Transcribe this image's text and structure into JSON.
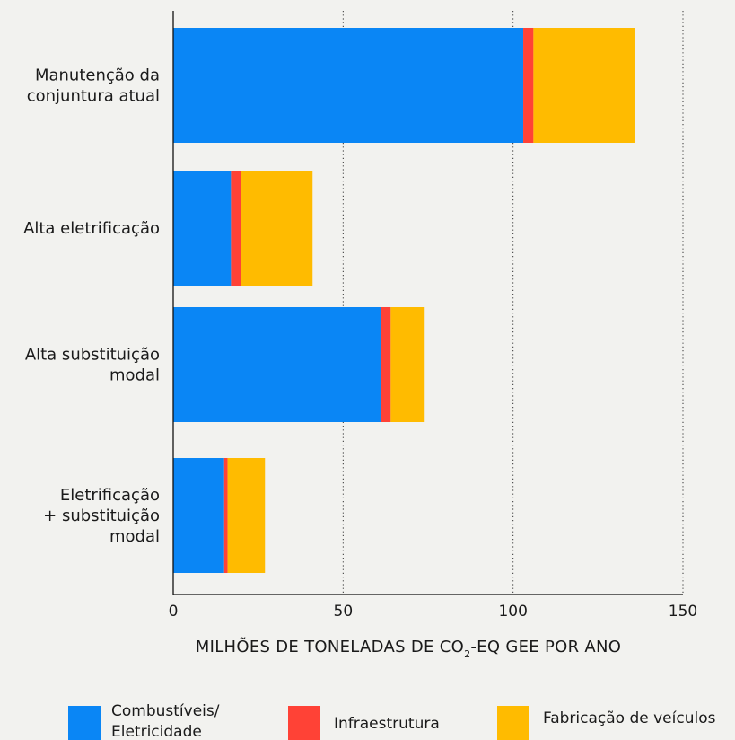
{
  "chart_data": {
    "type": "bar",
    "orientation": "horizontal",
    "stacked": true,
    "categories": [
      [
        "Manutenção da",
        "conjuntura atual"
      ],
      [
        "Alta eletrificação"
      ],
      [
        "Alta substituição",
        "modal"
      ],
      [
        "Eletrificação",
        "+  substituição",
        "modal"
      ]
    ],
    "series": [
      {
        "name": "Combustíveis/ Eletricidade",
        "name_lines": [
          "Combustíveis/",
          "Eletricidade"
        ],
        "color": "#0a86f5",
        "values": [
          103,
          17,
          61,
          15
        ]
      },
      {
        "name": "Infraestrutura",
        "name_lines": [
          "Infraestrutura"
        ],
        "color": "#ff4236",
        "values": [
          3,
          3,
          3,
          1
        ]
      },
      {
        "name": "Fabricação de veículos",
        "name_lines": [
          "Fabricação de veículos"
        ],
        "color": "#ffbb00",
        "values": [
          30,
          21,
          10,
          11
        ]
      }
    ],
    "xlabel": {
      "prefix": "MILHÕES DE TONELADAS DE CO",
      "subscript": "2",
      "suffix": "-EQ GEE POR ANO"
    },
    "xlim": [
      0,
      150
    ],
    "xticks": [
      0,
      50,
      100,
      150
    ],
    "grid": "vertical-dotted",
    "legend_position": "bottom"
  }
}
